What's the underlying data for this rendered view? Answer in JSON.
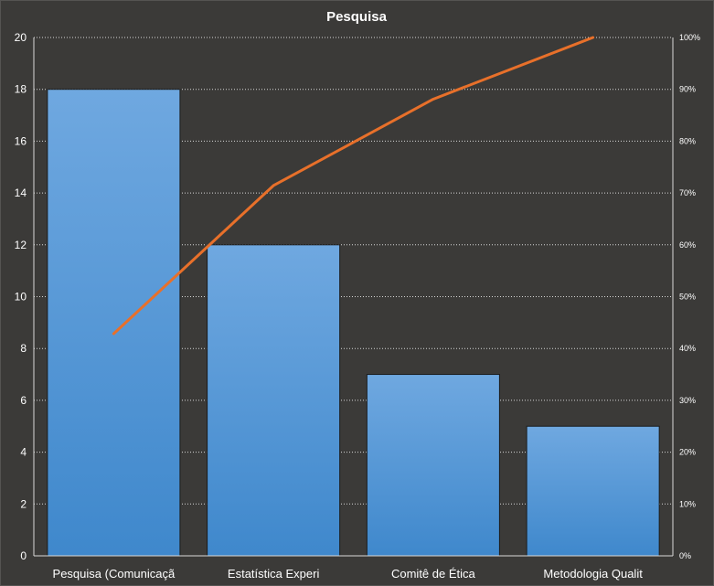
{
  "chart_data": {
    "type": "bar",
    "title": "Pesquisa",
    "categories": [
      "Pesquisa (Comunicaçã",
      "Estatística Experi",
      "Comitê de Ética",
      "Metodologia  Qualit"
    ],
    "series": [
      {
        "type": "bar",
        "values": [
          18,
          12,
          7,
          5
        ]
      },
      {
        "type": "line",
        "axis": "secondary",
        "values": [
          0.4286,
          0.7143,
          0.881,
          1.0
        ]
      }
    ],
    "ylim": [
      0,
      20
    ],
    "yticks": [
      "0",
      "2",
      "4",
      "6",
      "8",
      "10",
      "12",
      "14",
      "16",
      "18",
      "20"
    ],
    "y2lim": [
      0,
      1
    ],
    "y2ticks": [
      "0%",
      "10%",
      "20%",
      "30%",
      "40%",
      "50%",
      "60%",
      "70%",
      "80%",
      "90%",
      "100%"
    ],
    "grid": true,
    "legend": "none",
    "colors": {
      "bar_top": "#6fa8e0",
      "bar_bottom": "#3f88cc",
      "line": "#e8702a",
      "background": "#3b3a38"
    }
  }
}
